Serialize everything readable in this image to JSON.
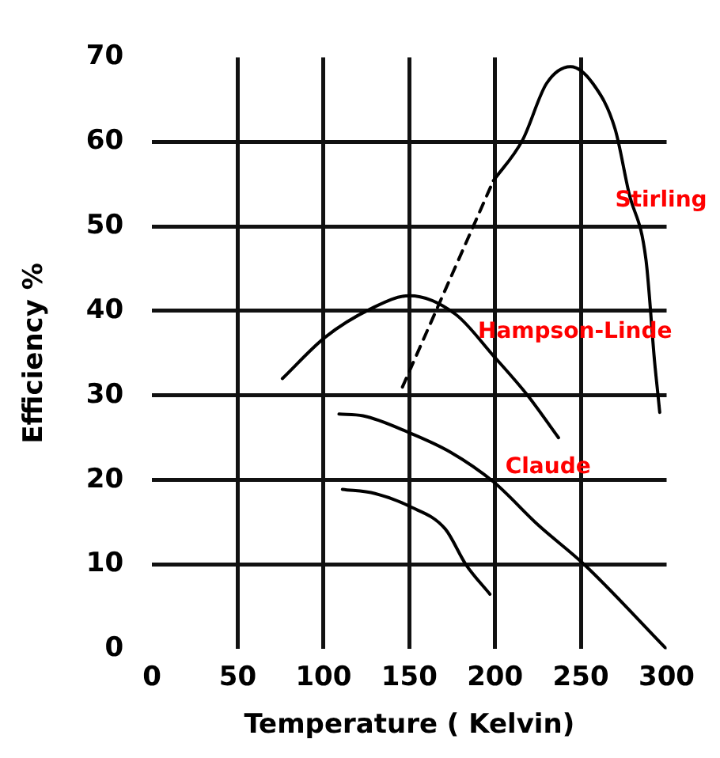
{
  "chart_data": {
    "type": "line",
    "xlabel": "Temperature ( Kelvin)",
    "ylabel": "Efficiency %",
    "xlim": [
      0,
      300
    ],
    "ylim": [
      0,
      70
    ],
    "xticks": [
      0,
      50,
      100,
      150,
      200,
      250,
      300
    ],
    "yticks": [
      0,
      10,
      20,
      30,
      40,
      50,
      60,
      70
    ],
    "grid": true,
    "marker": "none",
    "line_style": "solid",
    "series": [
      {
        "name": "Stirling",
        "color": "#000000",
        "x": [
          199,
          216,
          230,
          244,
          257,
          270,
          278,
          288,
          293,
          295,
          296
        ],
        "values": [
          55.4,
          60.2,
          66.9,
          68.9,
          66.9,
          61.5,
          54,
          46,
          34,
          30,
          28
        ]
      },
      {
        "color": "#000000",
        "line_style": "dashed",
        "x": [
          146,
          199
        ],
        "values": [
          31,
          55.4
        ]
      },
      {
        "name": "Hampson-Linde",
        "color": "#000000",
        "x": [
          76,
          101,
          127,
          150,
          177,
          199,
          219,
          237
        ],
        "values": [
          32,
          36.9,
          40.2,
          41.8,
          39.6,
          34.7,
          30,
          25
        ]
      },
      {
        "name": "Claude",
        "color": "#000000",
        "x": [
          109,
          123,
          150,
          174,
          199,
          225,
          252,
          300
        ],
        "values": [
          27.8,
          27.6,
          25.6,
          23.3,
          19.8,
          14.7,
          10,
          0
        ]
      },
      {
        "color": "#000000",
        "x": [
          111,
          130,
          150,
          171,
          183,
          197
        ],
        "values": [
          18.9,
          18.4,
          16.9,
          14.2,
          10,
          6.5
        ]
      }
    ]
  }
}
